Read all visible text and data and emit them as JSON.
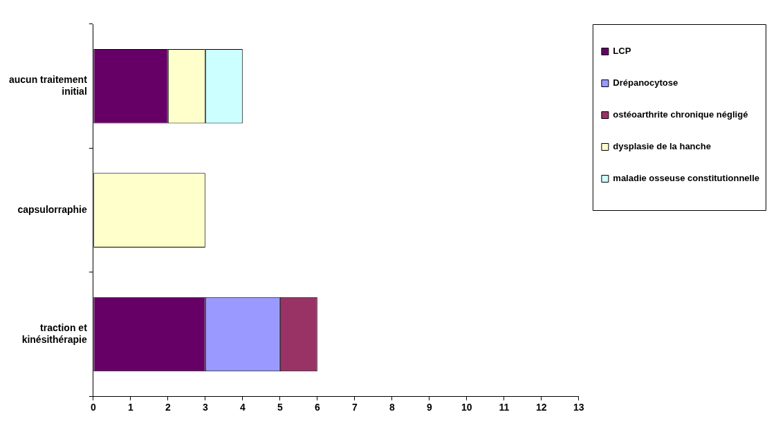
{
  "chart_data": {
    "type": "bar",
    "orientation": "horizontal",
    "stacked": true,
    "categories": [
      "aucun traitement initial",
      "capsulorraphie",
      "traction et kinésithérapie"
    ],
    "series": [
      {
        "name": "LCP",
        "color": "#660066",
        "values": [
          2,
          null,
          3
        ]
      },
      {
        "name": "Drépanocytose",
        "color": "#9999ff",
        "values": [
          null,
          null,
          2
        ]
      },
      {
        "name": "ostéoarthrite chronique négligé",
        "color": "#993366",
        "values": [
          null,
          null,
          1
        ]
      },
      {
        "name": "dysplasie de la hanche",
        "color": "#ffffcc",
        "values": [
          1,
          3,
          null
        ]
      },
      {
        "name": "maladie osseuse constitutionnelle",
        "color": "#ccffff",
        "values": [
          1,
          null,
          null
        ]
      }
    ],
    "xlim": [
      0,
      13
    ],
    "xticks": [
      0,
      1,
      2,
      3,
      4,
      5,
      6,
      7,
      8,
      9,
      10,
      11,
      12,
      13
    ],
    "grid": false,
    "legend": "right"
  }
}
